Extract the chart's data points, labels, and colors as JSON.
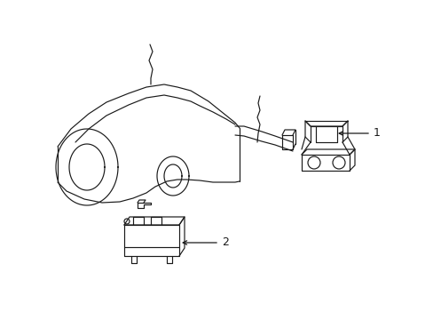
{
  "bg_color": "#ffffff",
  "line_color": "#1a1a1a",
  "lw": 0.85,
  "label1": "1",
  "label2": "2",
  "font_size": 9
}
